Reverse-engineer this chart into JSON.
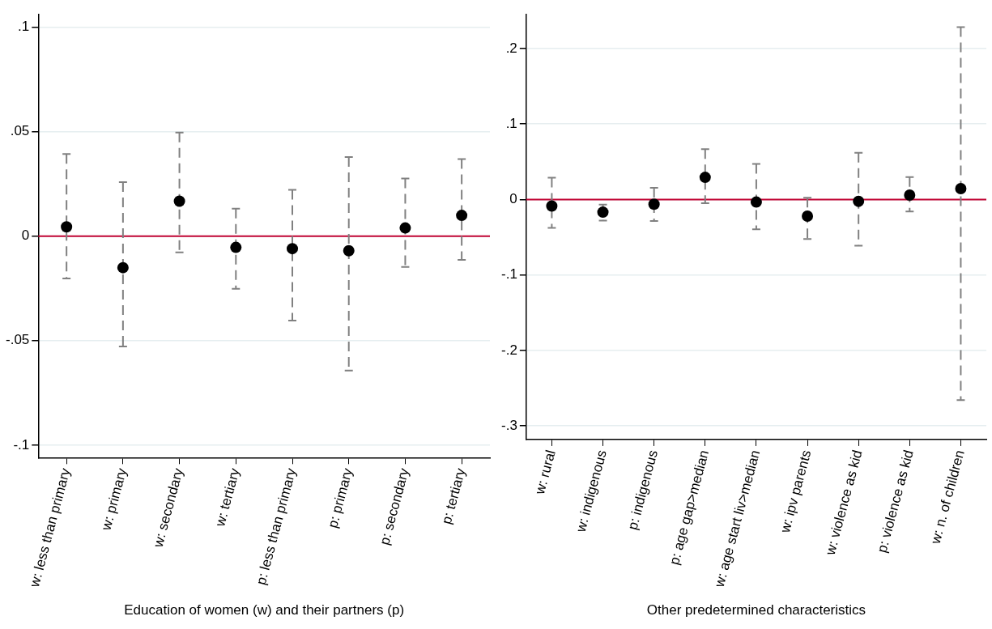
{
  "chart_data": [
    {
      "type": "scatter",
      "xlabel": "Education of women (w) and their partners (p)",
      "categories": [
        "w: less than primary",
        "w: primary",
        "w: secondary",
        "w: tertiary",
        "p: less than primary",
        "p: primary",
        "p: secondary",
        "p: tertiary"
      ],
      "values": [
        0.0044,
        -0.0151,
        0.0167,
        -0.0054,
        -0.006,
        -0.007,
        0.0039,
        0.0099
      ],
      "errors": [
        [
          -0.0203,
          0.0393
        ],
        [
          -0.0528,
          0.0258
        ],
        [
          -0.0078,
          0.0495
        ],
        [
          -0.0252,
          0.0131
        ],
        [
          -0.0404,
          0.0221
        ],
        [
          -0.0643,
          0.0378
        ],
        [
          -0.0148,
          0.0276
        ],
        [
          -0.0114,
          0.0369
        ]
      ],
      "color": "#000000",
      "marker": "circle",
      "grid": "y",
      "ylim": [
        -0.106,
        0.106
      ],
      "yticks": [
        {
          "value": -0.1,
          "label": "-.1"
        },
        {
          "value": -0.05,
          "label": "-.05"
        },
        0,
        {
          "value": 0.05,
          "label": ".05"
        },
        {
          "value": 0.1,
          "label": ".1"
        }
      ],
      "ref_lines": [
        {
          "axis": "y",
          "value": 0,
          "color": "#c10534"
        }
      ]
    },
    {
      "type": "scatter",
      "xlabel": "Other predetermined characteristics",
      "categories": [
        "w: rural",
        "w: indigenous",
        "p: indigenous",
        "p: age gap>median",
        "w: age start liv>median",
        "w: ipv parents",
        "w: violence as kid",
        "p: violence as kid",
        "w: n. of children"
      ],
      "values": [
        -0.0087,
        -0.0168,
        -0.0063,
        0.0293,
        -0.0034,
        -0.0221,
        -0.0024,
        0.0058,
        0.0144
      ],
      "errors": [
        [
          -0.0375,
          0.029
        ],
        [
          -0.0279,
          -0.0067
        ],
        [
          -0.0284,
          0.0154
        ],
        [
          -0.0048,
          0.0668
        ],
        [
          -0.0394,
          0.0471
        ],
        [
          -0.0524,
          0.0024
        ],
        [
          -0.0611,
          0.062
        ],
        [
          -0.0159,
          0.0298
        ],
        [
          -0.2659,
          0.2284
        ]
      ],
      "color": "#000000",
      "marker": "circle",
      "grid": "y",
      "ylim": [
        -0.318,
        0.245
      ],
      "yticks": [
        {
          "value": -0.3,
          "label": "-.3"
        },
        {
          "value": -0.2,
          "label": "-.2"
        },
        {
          "value": -0.1,
          "label": "-.1"
        },
        0,
        {
          "value": 0.1,
          "label": ".1"
        },
        {
          "value": 0.2,
          "label": ".2"
        }
      ],
      "ref_lines": [
        {
          "axis": "y",
          "value": 0,
          "color": "#c10534"
        }
      ]
    }
  ]
}
